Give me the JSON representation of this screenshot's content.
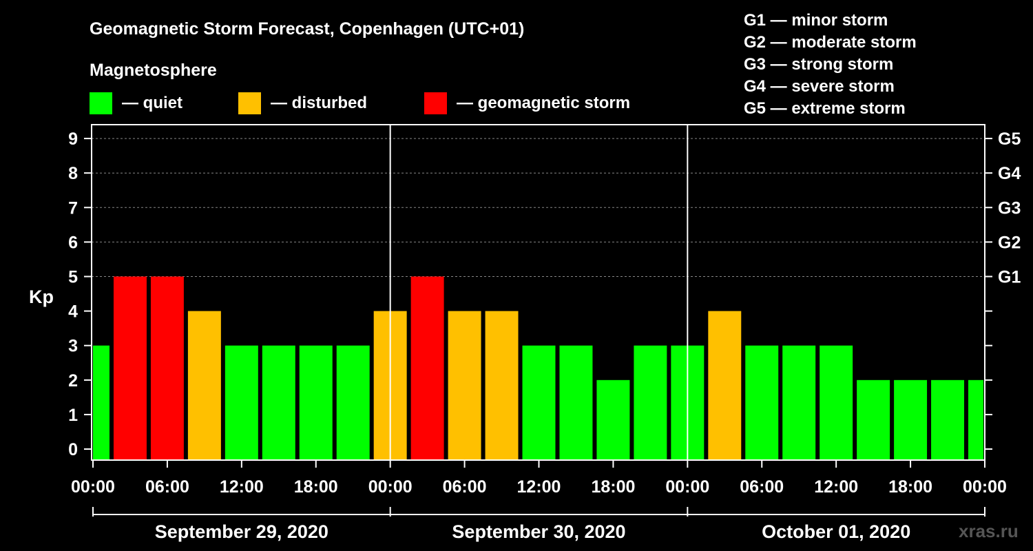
{
  "title": "Geomagnetic Storm Forecast, Copenhagen (UTC+01)",
  "legend": {
    "heading": "Magnetosphere",
    "items": [
      {
        "label": "— quiet",
        "color": "#00ff00"
      },
      {
        "label": "— disturbed",
        "color": "#ffc000"
      },
      {
        "label": "— geomagnetic storm",
        "color": "#ff0000"
      }
    ]
  },
  "storm_scale": [
    "G1 — minor storm",
    "G2 — moderate storm",
    "G3 — strong storm",
    "G4 — severe storm",
    "G5 — extreme storm"
  ],
  "watermark": "xras.ru",
  "chart_data": {
    "type": "bar",
    "ylabel": "Kp",
    "ylim": [
      0,
      9
    ],
    "yticks": [
      "0",
      "1",
      "2",
      "3",
      "4",
      "5",
      "6",
      "7",
      "8",
      "9"
    ],
    "right_axis_labels": [
      {
        "kp": 5,
        "label": "G1"
      },
      {
        "kp": 6,
        "label": "G2"
      },
      {
        "kp": 7,
        "label": "G3"
      },
      {
        "kp": 8,
        "label": "G4"
      },
      {
        "kp": 9,
        "label": "G5"
      }
    ],
    "xlim_hours": [
      0,
      72
    ],
    "xtick_labels": [
      "00:00",
      "06:00",
      "12:00",
      "18:00",
      "00:00",
      "06:00",
      "12:00",
      "18:00",
      "00:00",
      "06:00",
      "12:00",
      "18:00",
      "00:00"
    ],
    "days": [
      "September 29, 2020",
      "September 30, 2020",
      "October 01, 2020"
    ],
    "colors": {
      "quiet": "#00ff00",
      "disturbed": "#ffc000",
      "storm": "#ff0000"
    },
    "bars": [
      {
        "start_hour": -1.5,
        "kp": 3
      },
      {
        "start_hour": 1.5,
        "kp": 5
      },
      {
        "start_hour": 4.5,
        "kp": 5
      },
      {
        "start_hour": 7.5,
        "kp": 4
      },
      {
        "start_hour": 10.5,
        "kp": 3
      },
      {
        "start_hour": 13.5,
        "kp": 3
      },
      {
        "start_hour": 16.5,
        "kp": 3
      },
      {
        "start_hour": 19.5,
        "kp": 3
      },
      {
        "start_hour": 22.5,
        "kp": 4
      },
      {
        "start_hour": 25.5,
        "kp": 5
      },
      {
        "start_hour": 28.5,
        "kp": 4
      },
      {
        "start_hour": 31.5,
        "kp": 4
      },
      {
        "start_hour": 34.5,
        "kp": 3
      },
      {
        "start_hour": 37.5,
        "kp": 3
      },
      {
        "start_hour": 40.5,
        "kp": 2
      },
      {
        "start_hour": 43.5,
        "kp": 3
      },
      {
        "start_hour": 46.5,
        "kp": 3
      },
      {
        "start_hour": 49.5,
        "kp": 4
      },
      {
        "start_hour": 52.5,
        "kp": 3
      },
      {
        "start_hour": 55.5,
        "kp": 3
      },
      {
        "start_hour": 58.5,
        "kp": 3
      },
      {
        "start_hour": 61.5,
        "kp": 2
      },
      {
        "start_hour": 64.5,
        "kp": 2
      },
      {
        "start_hour": 67.5,
        "kp": 2
      },
      {
        "start_hour": 70.5,
        "kp": 2
      }
    ]
  }
}
